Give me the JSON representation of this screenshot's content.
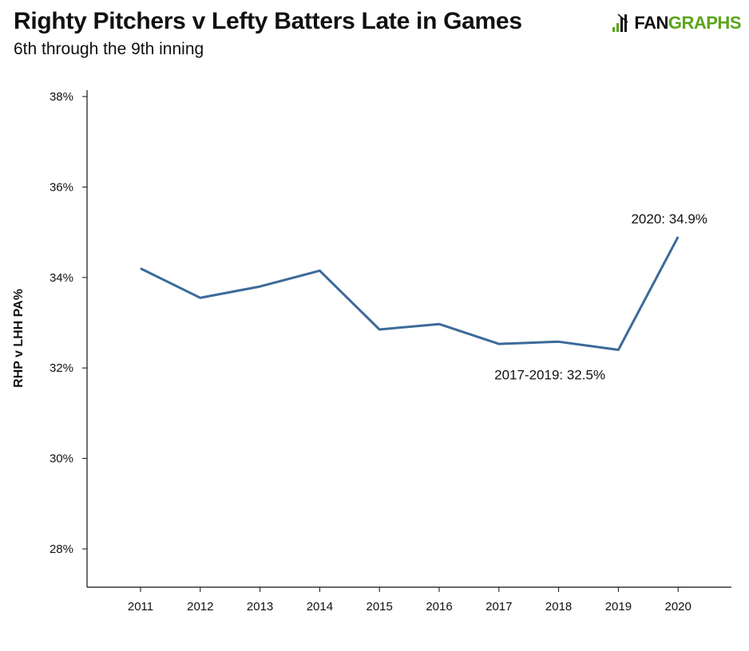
{
  "header": {
    "title": "Righty Pitchers v Lefty Batters Late in Games",
    "subtitle": "6th through the 9th inning",
    "logo_part1": "FAN",
    "logo_part2": "GRAPHS"
  },
  "colors": {
    "line": "#3d6a98",
    "brand_green": "#5ba51c",
    "axis": "#111111"
  },
  "chart_data": {
    "type": "line",
    "title": "Righty Pitchers v Lefty Batters Late in Games",
    "subtitle": "6th through the 9th inning",
    "xlabel": "",
    "ylabel": "RHP v LHH PA%",
    "ylim": [
      27.5,
      38.2
    ],
    "yticks": [
      28,
      30,
      32,
      34,
      36,
      38
    ],
    "ytick_labels": [
      "28%",
      "30%",
      "32%",
      "34%",
      "36%",
      "38%"
    ],
    "categories": [
      "2011",
      "2012",
      "2013",
      "2014",
      "2015",
      "2016",
      "2017",
      "2018",
      "2019",
      "2020"
    ],
    "series": [
      {
        "values": [
          34.2,
          33.55,
          33.8,
          34.15,
          32.85,
          32.97,
          32.53,
          32.58,
          32.4,
          34.9
        ]
      }
    ],
    "annotations": [
      {
        "text": "2020: 34.9%",
        "x": "2020",
        "y": 35.3
      },
      {
        "text": "2017-2019: 32.5%",
        "x": "2018",
        "y": 31.85
      }
    ],
    "grid": false,
    "legend": "none"
  }
}
